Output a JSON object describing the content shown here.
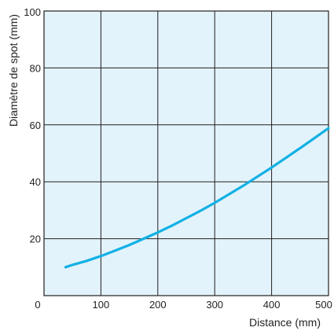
{
  "chart_data": {
    "type": "line",
    "title": "",
    "xlabel": "Distance (mm)",
    "ylabel": "Diamètre de spot (mm)",
    "xlim": [
      0,
      500
    ],
    "ylim": [
      0,
      100
    ],
    "x_ticks": [
      0,
      100,
      200,
      300,
      400,
      500
    ],
    "y_ticks": [
      20,
      40,
      60,
      80,
      100
    ],
    "grid": true,
    "legend": "none",
    "colors": {
      "plot_background": "#e2f3fb",
      "line": "#12b1e4",
      "grid": "#231f20"
    },
    "series": [
      {
        "x": [
          38,
          50,
          75,
          100,
          125,
          150,
          175,
          200,
          225,
          250,
          275,
          300,
          325,
          350,
          375,
          400,
          425,
          450,
          475,
          500
        ],
        "y": [
          10,
          10.8,
          12.2,
          13.9,
          15.8,
          17.8,
          20.0,
          22.2,
          24.6,
          27.2,
          29.8,
          32.6,
          35.6,
          38.6,
          41.8,
          45.0,
          48.4,
          51.8,
          55.3,
          58.8
        ]
      }
    ]
  }
}
